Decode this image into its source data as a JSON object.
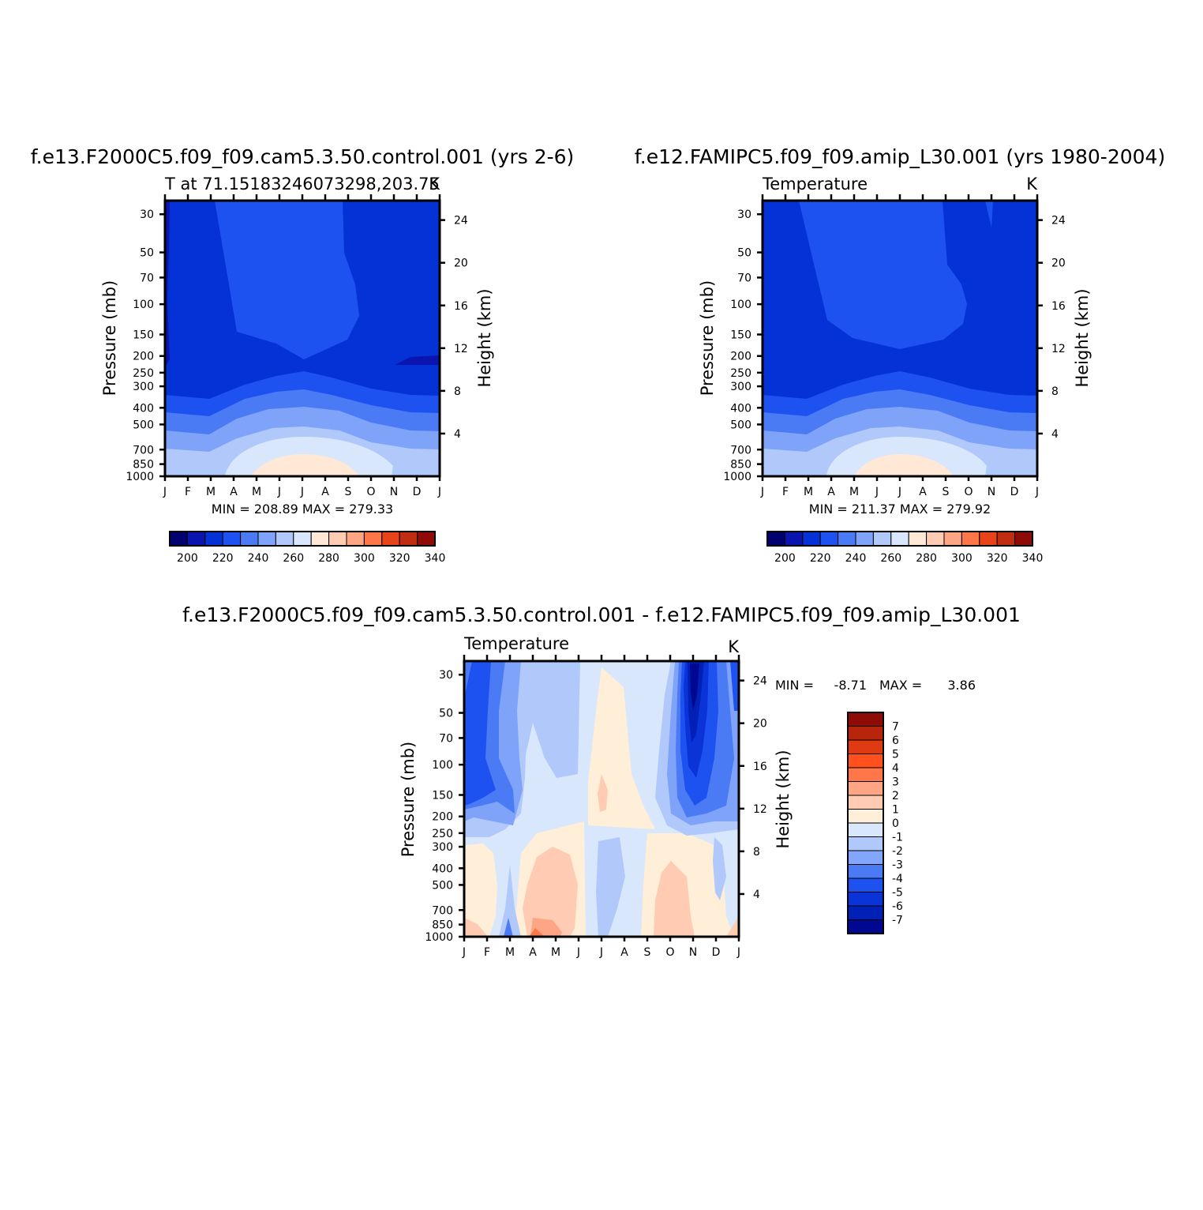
{
  "months": [
    "J",
    "F",
    "M",
    "A",
    "M",
    "J",
    "J",
    "A",
    "S",
    "O",
    "N",
    "D",
    "J"
  ],
  "pressure_ticks": [
    "30",
    "50",
    "70",
    "100",
    "150",
    "200",
    "250",
    "300",
    "400",
    "500",
    "700",
    "850",
    "1000"
  ],
  "height_ticks": [
    "24",
    "20",
    "16",
    "12",
    "8",
    "4"
  ],
  "ylabel": "Pressure (mb)",
  "ylabel_right": "Height (km)",
  "colors": {
    "abs_levels": [
      "#000070",
      "#0a15b0",
      "#0532d6",
      "#1e52f0",
      "#4b7af5",
      "#7ea3f8",
      "#b1c8fb",
      "#d8e7fc",
      "#ffe8d6",
      "#ffcbb2",
      "#fea583",
      "#ff7648",
      "#e9431b",
      "#c02d10",
      "#8e0c05"
    ],
    "diff_levels": [
      "#000790",
      "#0020b6",
      "#0a34d8",
      "#1e52f0",
      "#4b7af5",
      "#82a6fb",
      "#b1c8fb",
      "#d8e7fc",
      "#ffeed8",
      "#ffcbb2",
      "#fea583",
      "#ff7648",
      "#ff501e",
      "#e03a12",
      "#b8250a",
      "#8e0c05"
    ]
  },
  "chart_data": [
    {
      "type": "heatmap",
      "title": "f.e13.F2000C5.f09_f09.cam5.3.50.control.001 (yrs 2-6)",
      "subtitle_left": "T at 71.15183246073298,203.75",
      "subtitle_right": "K",
      "stats": "MIN = 208.89 MAX = 279.33",
      "colorbar_labels": [
        "200",
        "220",
        "240",
        "260",
        "280",
        "300",
        "320",
        "340"
      ],
      "variable": "T",
      "min": 208.89,
      "max": 279.33
    },
    {
      "type": "heatmap",
      "title": "f.e12.FAMIPC5.f09_f09.amip_L30.001 (yrs 1980-2004)",
      "subtitle_left": "Temperature",
      "subtitle_right": "K",
      "stats": "MIN = 211.37 MAX = 279.92",
      "colorbar_labels": [
        "200",
        "220",
        "240",
        "260",
        "280",
        "300",
        "320",
        "340"
      ],
      "variable": "T",
      "min": 211.37,
      "max": 279.92
    },
    {
      "type": "heatmap",
      "title": "f.e13.F2000C5.f09_f09.cam5.3.50.control.001 - f.e12.FAMIPC5.f09_f09.amip_L30.001",
      "subtitle_left": "Temperature",
      "subtitle_right": "K",
      "stats_min_label": "MIN =",
      "stats_min": "-8.71",
      "stats_max_label": "MAX =",
      "stats_max": "3.86",
      "colorbar_labels": [
        "7",
        "6",
        "5",
        "4",
        "3",
        "2",
        "1",
        "0",
        "-1",
        "-2",
        "-3",
        "-4",
        "-5",
        "-6",
        "-7"
      ],
      "variable": "T difference",
      "min": -8.71,
      "max": 3.86
    }
  ]
}
